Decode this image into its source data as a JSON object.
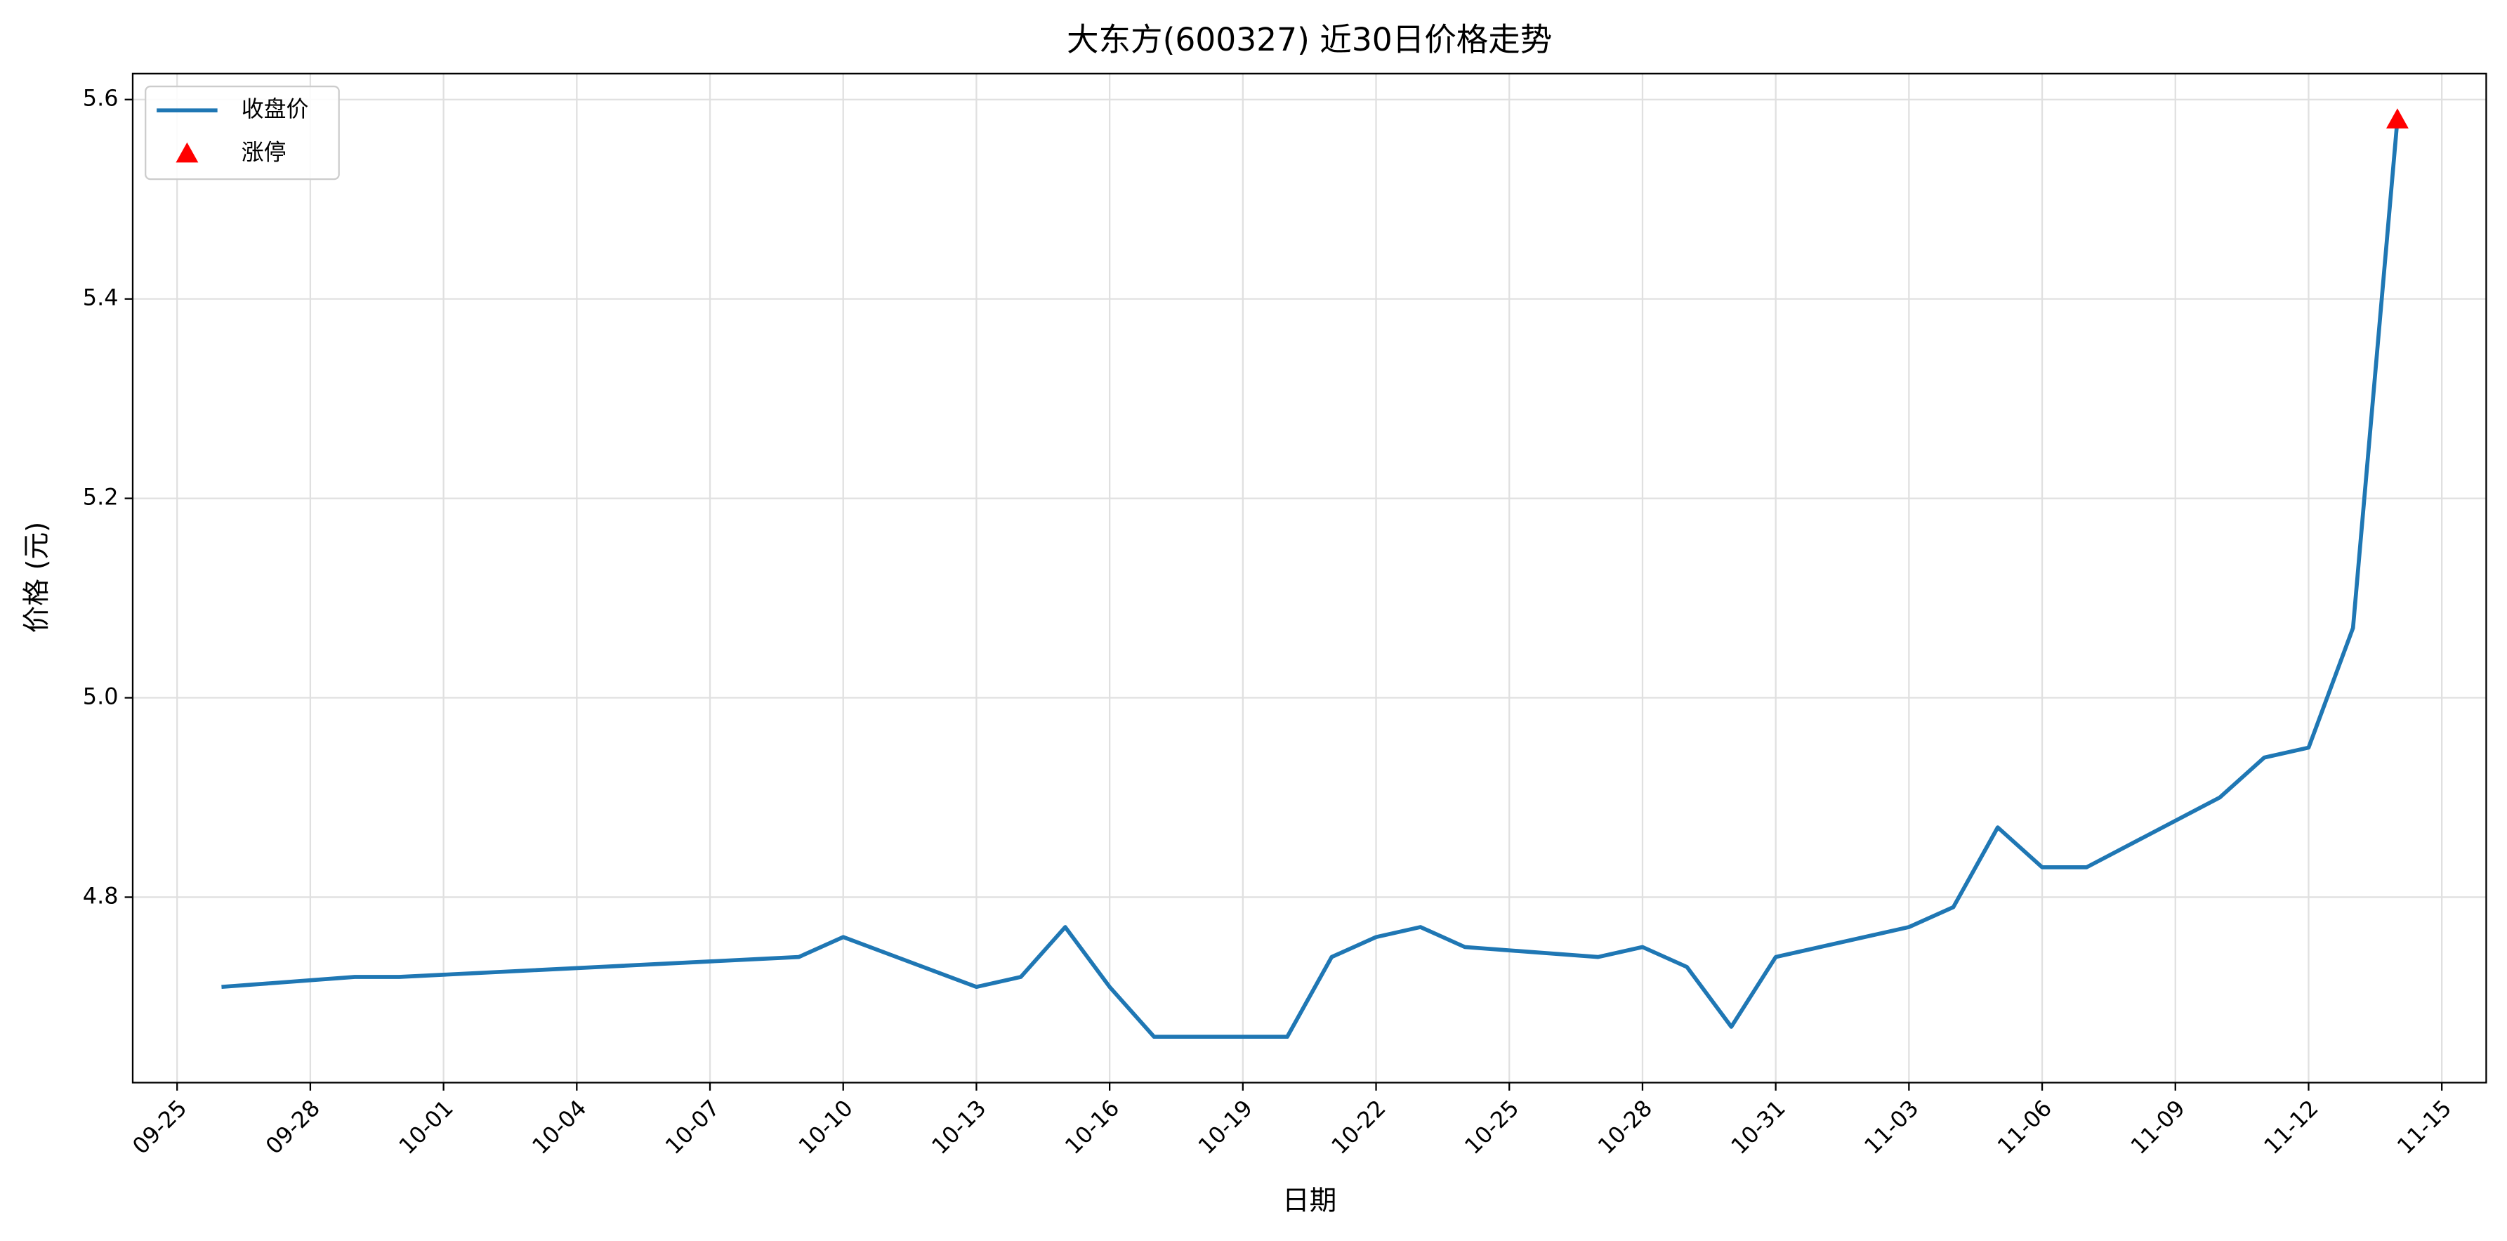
{
  "chart_data": {
    "type": "line",
    "title": "大东方(600327) 近30日价格走势",
    "x_label": "日期",
    "y_label": "价格 (元)",
    "x": [
      "09-26",
      "09-29",
      "09-30",
      "10-09",
      "10-10",
      "10-13",
      "10-14",
      "10-15",
      "10-16",
      "10-17",
      "10-20",
      "10-21",
      "10-22",
      "10-23",
      "10-24",
      "10-27",
      "10-28",
      "10-29",
      "10-30",
      "10-31",
      "11-03",
      "11-04",
      "11-05",
      "11-06",
      "11-07",
      "11-10",
      "11-11",
      "11-12",
      "11-13",
      "11-14"
    ],
    "series": [
      {
        "name": "收盘价",
        "color": "#1f77b4",
        "type": "line",
        "values": [
          4.71,
          4.72,
          4.72,
          4.74,
          4.76,
          4.71,
          4.72,
          4.77,
          4.71,
          4.66,
          4.66,
          4.74,
          4.76,
          4.77,
          4.75,
          4.74,
          4.75,
          4.73,
          4.67,
          4.74,
          4.77,
          4.79,
          4.87,
          4.83,
          4.83,
          4.9,
          4.94,
          4.95,
          5.07,
          5.58
        ]
      },
      {
        "name": "涨停",
        "color": "#ff0000",
        "type": "scatter",
        "marker": "triangle",
        "values": [
          null,
          null,
          null,
          null,
          null,
          null,
          null,
          null,
          null,
          null,
          null,
          null,
          null,
          null,
          null,
          null,
          null,
          null,
          null,
          null,
          null,
          null,
          null,
          null,
          null,
          null,
          null,
          null,
          null,
          5.58
        ]
      }
    ],
    "xlim": [
      "09-24",
      "11-16"
    ],
    "xticks": [
      "09-25",
      "09-28",
      "10-01",
      "10-04",
      "10-07",
      "10-10",
      "10-13",
      "10-16",
      "10-19",
      "10-22",
      "10-25",
      "10-28",
      "10-31",
      "11-03",
      "11-06",
      "11-09",
      "11-12",
      "11-15"
    ],
    "ylim": [
      4.614,
      5.626
    ],
    "yticks": [
      4.8,
      {
        "value": 5,
        "label": "5.0"
      },
      5.2,
      5.4,
      5.6
    ],
    "grid": true,
    "legend": "upper left"
  }
}
